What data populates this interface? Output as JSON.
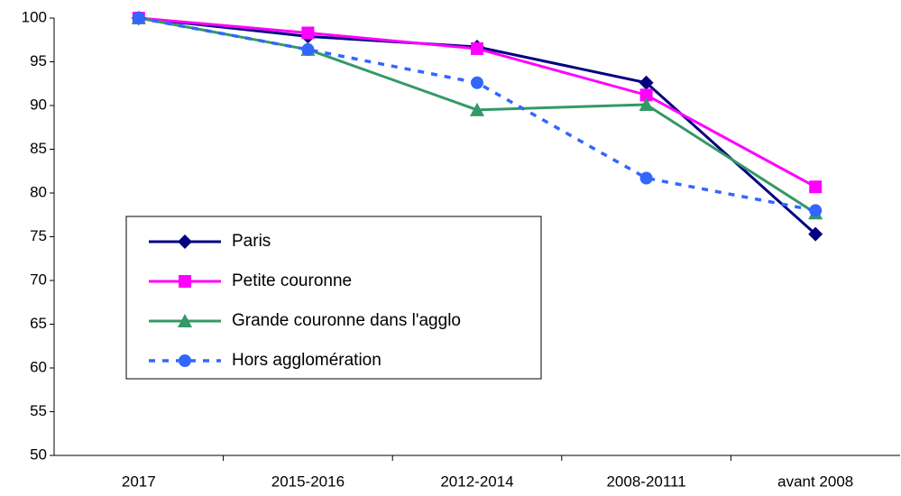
{
  "chart_data": {
    "type": "line",
    "categories": [
      "2017",
      "2015-2016",
      "2012-2014",
      "2008-20111",
      "avant 2008"
    ],
    "ylim": [
      50,
      100
    ],
    "yticks": [
      50,
      55,
      60,
      65,
      70,
      75,
      80,
      85,
      90,
      95,
      100
    ],
    "series": [
      {
        "name": "Paris",
        "color": "#000080",
        "marker": "diamond",
        "dashed": false,
        "values": [
          100,
          97.9,
          96.7,
          92.6,
          75.3
        ]
      },
      {
        "name": "Petite couronne",
        "color": "#ff00ff",
        "marker": "square",
        "dashed": false,
        "values": [
          100,
          98.3,
          96.5,
          91.2,
          80.7
        ]
      },
      {
        "name": "Grande couronne dans l'agglo",
        "color": "#339966",
        "marker": "triangle",
        "dashed": false,
        "values": [
          100,
          96.4,
          89.5,
          90.1,
          77.7
        ]
      },
      {
        "name": "Hors agglomération",
        "color": "#3366ff",
        "marker": "circle",
        "dashed": true,
        "values": [
          100,
          96.4,
          92.6,
          81.7,
          78.0
        ]
      }
    ]
  }
}
